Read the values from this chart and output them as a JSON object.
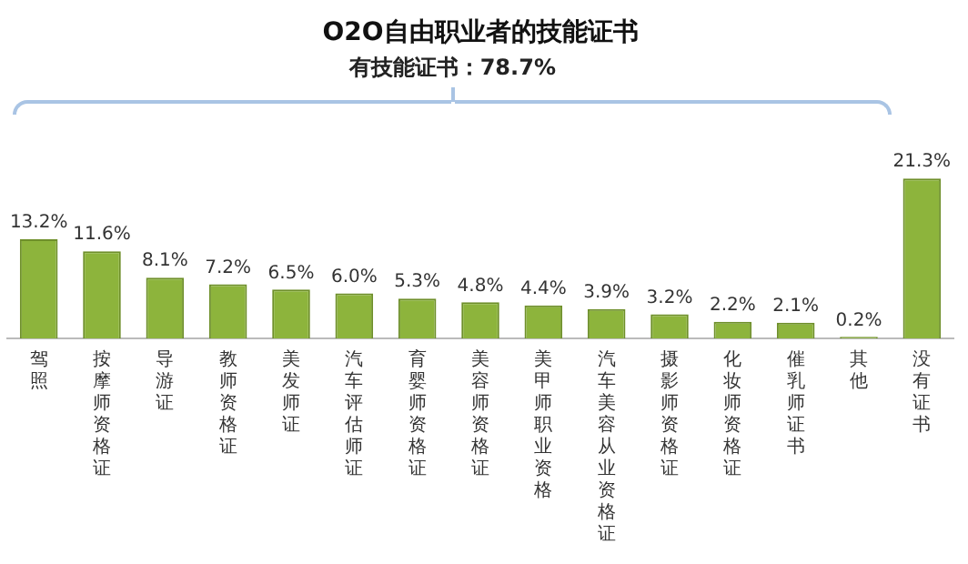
{
  "chart_data": {
    "type": "bar",
    "title": "O2O自由职业者的技能证书",
    "categories": [
      "驾照",
      "按摩师资格证",
      "导游证",
      "教师资格证",
      "美发师证",
      "汽车评估师证",
      "育婴师资格证",
      "美容师资格证",
      "美甲师职业资格",
      "汽车美容从业资格证",
      "摄影师资格证",
      "化妆师资格证",
      "催乳师证书",
      "其他",
      "没有证书"
    ],
    "values": [
      13.2,
      11.6,
      8.1,
      7.2,
      6.5,
      6.0,
      5.3,
      4.8,
      4.4,
      3.9,
      3.2,
      2.2,
      2.1,
      0.2,
      21.3
    ],
    "value_labels": [
      "13.2%",
      "11.6%",
      "8.1%",
      "7.2%",
      "6.5%",
      "6.0%",
      "5.3%",
      "4.8%",
      "4.4%",
      "3.9%",
      "3.2%",
      "2.2%",
      "2.1%",
      "0.2%",
      "21.3%"
    ],
    "color": "#8db43c",
    "annotations": [
      "有技能证书：78.7%"
    ],
    "grid": false,
    "legend": false
  }
}
